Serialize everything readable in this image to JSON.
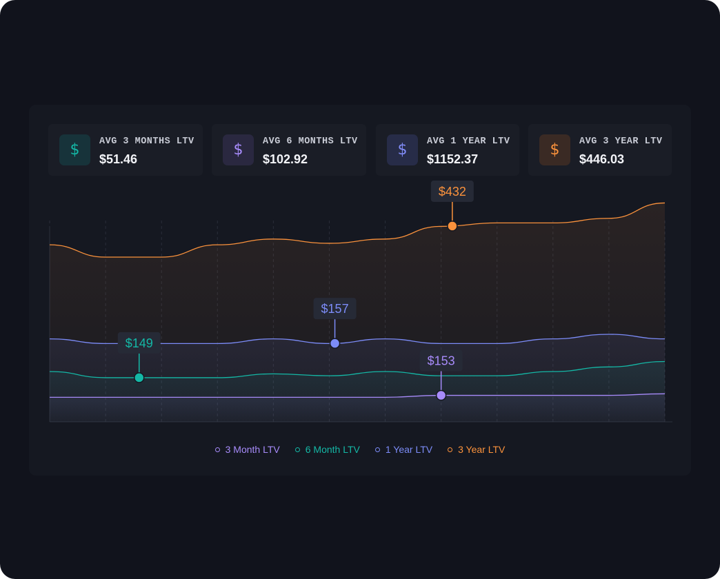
{
  "colors": {
    "teal": "#14b8a6",
    "purple": "#a78bfa",
    "blue": "#7c8cf8",
    "orange": "#fb923c"
  },
  "cards": [
    {
      "icon": "dollar-icon",
      "icon_glyph": "$",
      "label": "AVG 3 MONTHS LTV",
      "value": "$51.46",
      "color": "#14b8a6",
      "bg": "#17333a"
    },
    {
      "icon": "dollar-icon",
      "icon_glyph": "$",
      "label": "AVG 6 MONTHS LTV",
      "value": "$102.92",
      "color": "#a78bfa",
      "bg": "#2a2840"
    },
    {
      "icon": "dollar-icon",
      "icon_glyph": "$",
      "label": "AVG 1 YEAR LTV",
      "value": "$1152.37",
      "color": "#818cf8",
      "bg": "#272c48"
    },
    {
      "icon": "dollar-icon",
      "icon_glyph": "$",
      "label": "AVG 3 YEAR LTV",
      "value": "$446.03",
      "color": "#fb923c",
      "bg": "#3a2a24"
    }
  ],
  "chart_data": {
    "type": "area",
    "title": "",
    "xlabel": "",
    "ylabel": "",
    "ylim": [
      0,
      560
    ],
    "grid": "vertical-dashed",
    "legend_position": "bottom-center",
    "x": [
      0,
      1,
      2,
      3,
      4,
      5,
      6,
      7,
      8,
      9,
      10,
      11
    ],
    "series": [
      {
        "name": "3 Month LTV",
        "color": "#a78bfa",
        "values": [
          64,
          64,
          64,
          64,
          64,
          64,
          64,
          69,
          69,
          69,
          69,
          73
        ]
      },
      {
        "name": "6 Month LTV",
        "color": "#14b8a6",
        "values": [
          131,
          115,
          115,
          115,
          125,
          120,
          131,
          120,
          120,
          131,
          143,
          157
        ]
      },
      {
        "name": "1 Year LTV",
        "color": "#7c8cf8",
        "values": [
          216,
          204,
          204,
          204,
          216,
          204,
          216,
          204,
          204,
          216,
          228,
          216
        ]
      },
      {
        "name": "3 Year LTV",
        "color": "#fb923c",
        "values": [
          461,
          429,
          429,
          461,
          476,
          465,
          476,
          509,
          518,
          518,
          530,
          570
        ]
      }
    ],
    "annotations": [
      {
        "series": "6 Month LTV",
        "x": 1.6,
        "label": "$149"
      },
      {
        "series": "1 Year LTV",
        "x": 5.1,
        "label": "$157"
      },
      {
        "series": "3 Month LTV",
        "x": 7.0,
        "label": "$153"
      },
      {
        "series": "3 Year LTV",
        "x": 7.2,
        "label": "$432"
      }
    ]
  }
}
